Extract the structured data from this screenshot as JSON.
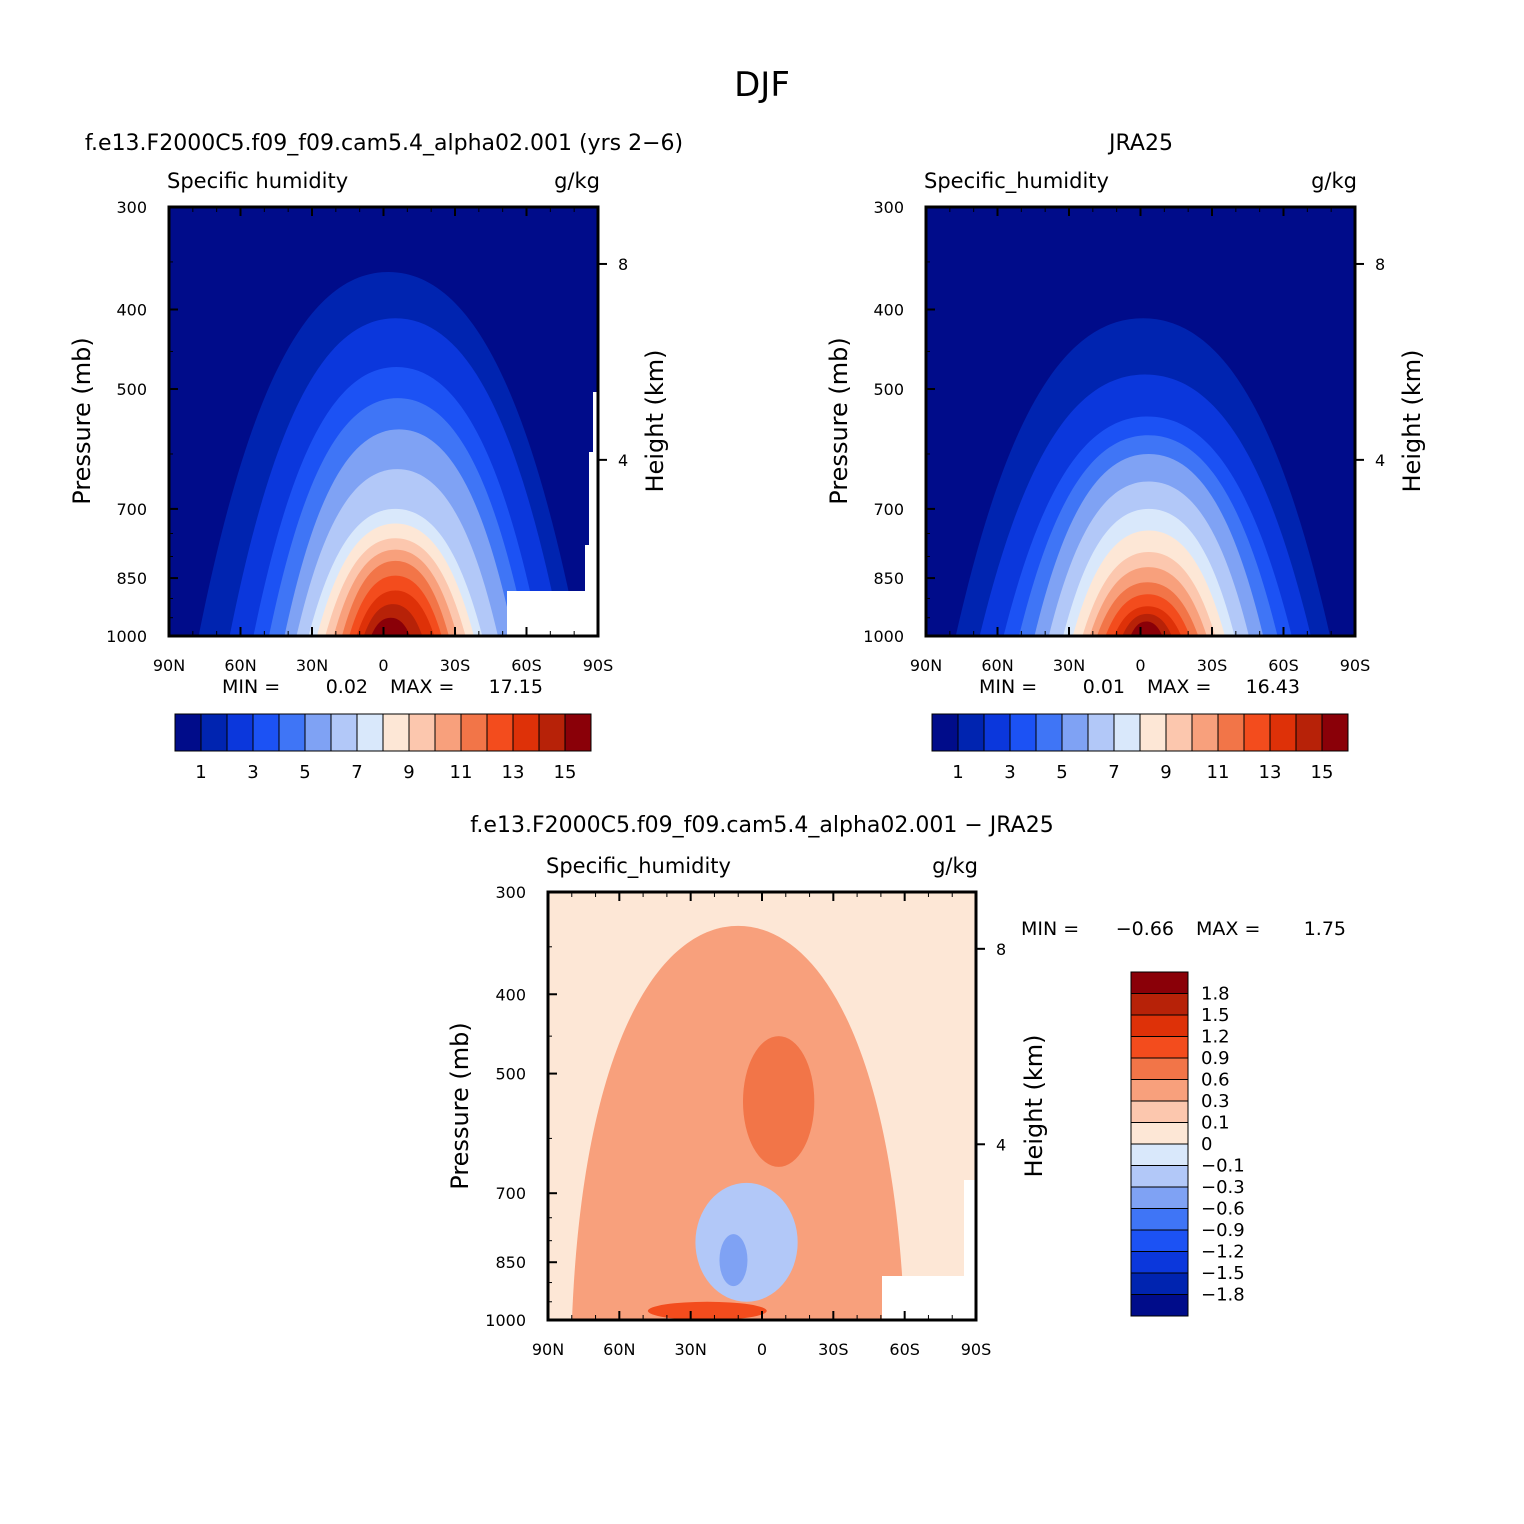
{
  "title": "DJF",
  "colors": {
    "seq": [
      "#000c8a",
      "#0024b0",
      "#0b37dc",
      "#1c52f4",
      "#3f75f6",
      "#7fa2f4",
      "#b2c8f8",
      "#d9e8fb",
      "#fde7d6",
      "#fcc7ae",
      "#f8a07c",
      "#f27548",
      "#f34c1d",
      "#de3108",
      "#b72208",
      "#8a0008"
    ],
    "diff": [
      "#000c8a",
      "#0024b0",
      "#0b37dc",
      "#1c52f4",
      "#3f75f6",
      "#7fa2f4",
      "#b2c8f8",
      "#d9e8fb",
      "#fde7d6",
      "#fcc7ae",
      "#f8a07c",
      "#f27548",
      "#f34c1d",
      "#de3108",
      "#b72208",
      "#8a0008"
    ]
  },
  "panel_model": {
    "case_title": "f.e13.F2000C5.f09_f09.cam5.4_alpha02.001 (yrs 2-6)",
    "left_label": "Specific humidity",
    "units": "g/kg",
    "ylabel": "Pressure (mb)",
    "right_ylabel": "Height (km)",
    "min_label": "MIN =",
    "min_value": "0.02",
    "max_label": "MAX =",
    "max_value": "17.15"
  },
  "panel_obs": {
    "case_title": "JRA25",
    "left_label": "Specific_humidity",
    "units": "g/kg",
    "ylabel": "Pressure (mb)",
    "right_ylabel": "Height (km)",
    "min_label": "MIN =",
    "min_value": "0.01",
    "max_label": "MAX =",
    "max_value": "16.43"
  },
  "panel_diff": {
    "case_title": "f.e13.F2000C5.f09_f09.cam5.4_alpha02.001 - JRA25",
    "left_label": "Specific_humidity",
    "units": "g/kg",
    "ylabel": "Pressure (mb)",
    "right_ylabel": "Height (km)",
    "min_label": "MIN =",
    "min_value": "-0.66",
    "max_label": "MAX =",
    "max_value": "1.75"
  },
  "axes": {
    "pressure_ticks": [
      "300",
      "400",
      "500",
      "700",
      "850",
      "1000"
    ],
    "lat_ticks": [
      "90N",
      "60N",
      "30N",
      "0",
      "30S",
      "60S",
      "90S"
    ],
    "height_ticks": [
      "8",
      "4"
    ]
  },
  "colorbar_seq": {
    "labels": [
      "1",
      "3",
      "5",
      "7",
      "9",
      "11",
      "13",
      "15"
    ]
  },
  "colorbar_diff": {
    "labels": [
      "1.8",
      "1.5",
      "1.2",
      "0.9",
      "0.6",
      "0.3",
      "0.1",
      "0",
      "-0.1",
      "-0.3",
      "-0.6",
      "-0.9",
      "-1.2",
      "-1.5",
      "-1.8"
    ]
  },
  "chart_data": [
    {
      "type": "heatmap",
      "title": "f.e13.F2000C5.f09_f09.cam5.4_alpha02.001 (yrs 2-6)",
      "xlabel": "",
      "ylabel": "Pressure (mb)",
      "x_ticks": [
        "90N",
        "60N",
        "30N",
        "0",
        "30S",
        "60S",
        "90S"
      ],
      "y_ticks": [
        300,
        400,
        500,
        700,
        850,
        1000
      ],
      "xlim": [
        90,
        -90
      ],
      "ylim": [
        1000,
        300
      ],
      "y_scale": "log",
      "levels": [
        1,
        2,
        3,
        4,
        5,
        6,
        7,
        8,
        9,
        10,
        11,
        12,
        13,
        14,
        15
      ],
      "min": 0.02,
      "max": 17.15,
      "center_lat": 0,
      "surface_max": 17.15,
      "shape": [
        {
          "level": 1,
          "top_p": 360,
          "lat_range": [
            -82,
            78
          ]
        },
        {
          "level": 2,
          "top_p": 410,
          "lat_range": [
            -75,
            65
          ]
        },
        {
          "level": 3,
          "top_p": 470,
          "lat_range": [
            -66,
            55
          ]
        },
        {
          "level": 5,
          "top_p": 560,
          "lat_range": [
            -55,
            42
          ]
        },
        {
          "level": 7,
          "top_p": 700,
          "lat_range": [
            -42,
            32
          ]
        },
        {
          "level": 9,
          "top_p": 760,
          "lat_range": [
            -35,
            25
          ]
        },
        {
          "level": 11,
          "top_p": 810,
          "lat_range": [
            -28,
            18
          ]
        },
        {
          "level": 13,
          "top_p": 880,
          "lat_range": [
            -22,
            12
          ]
        },
        {
          "level": 15,
          "top_p": 950,
          "lat_range": [
            -12,
            6
          ]
        }
      ]
    },
    {
      "type": "heatmap",
      "title": "JRA25",
      "xlabel": "",
      "ylabel": "Pressure (mb)",
      "x_ticks": [
        "90N",
        "60N",
        "30N",
        "0",
        "30S",
        "60S",
        "90S"
      ],
      "y_ticks": [
        300,
        400,
        500,
        700,
        850,
        1000
      ],
      "xlim": [
        90,
        -90
      ],
      "ylim": [
        1000,
        300
      ],
      "y_scale": "log",
      "levels": [
        1,
        2,
        3,
        4,
        5,
        6,
        7,
        8,
        9,
        10,
        11,
        12,
        13,
        14,
        15
      ],
      "min": 0.01,
      "max": 16.43,
      "shape": [
        {
          "level": 1,
          "top_p": 410,
          "lat_range": [
            -80,
            78
          ]
        },
        {
          "level": 2,
          "top_p": 480,
          "lat_range": [
            -72,
            68
          ]
        },
        {
          "level": 3,
          "top_p": 540,
          "lat_range": [
            -64,
            58
          ]
        },
        {
          "level": 5,
          "top_p": 600,
          "lat_range": [
            -52,
            45
          ]
        },
        {
          "level": 7,
          "top_p": 700,
          "lat_range": [
            -40,
            33
          ]
        },
        {
          "level": 9,
          "top_p": 790,
          "lat_range": [
            -32,
            25
          ]
        },
        {
          "level": 11,
          "top_p": 860,
          "lat_range": [
            -25,
            19
          ]
        },
        {
          "level": 13,
          "top_p": 920,
          "lat_range": [
            -18,
            12
          ]
        },
        {
          "level": 15,
          "top_p": 960,
          "lat_range": [
            -10,
            5
          ]
        }
      ]
    },
    {
      "type": "heatmap",
      "title": "f.e13.F2000C5.f09_f09.cam5.4_alpha02.001 - JRA25",
      "xlabel": "",
      "ylabel": "Pressure (mb)",
      "x_ticks": [
        "90N",
        "60N",
        "30N",
        "0",
        "30S",
        "60S",
        "90S"
      ],
      "y_ticks": [
        300,
        400,
        500,
        700,
        850,
        1000
      ],
      "xlim": [
        90,
        -90
      ],
      "ylim": [
        1000,
        300
      ],
      "y_scale": "log",
      "levels": [
        -1.8,
        -1.5,
        -1.2,
        -0.9,
        -0.6,
        -0.3,
        -0.1,
        0,
        0.1,
        0.3,
        0.6,
        0.9,
        1.2,
        1.5,
        1.8
      ],
      "min": -0.66,
      "max": 1.75,
      "features": [
        {
          "value": 0.3,
          "desc": "broad positive dome",
          "lat_range": [
            -60,
            80
          ],
          "p_range": [
            1000,
            330
          ]
        },
        {
          "value": 0.6,
          "desc": "upper tropical maximum",
          "lat_range": [
            -22,
            8
          ],
          "p_range": [
            650,
            450
          ]
        },
        {
          "value": -0.3,
          "desc": "lower tropospheric negative",
          "lat_range": [
            -15,
            28
          ],
          "p_range": [
            950,
            680
          ]
        },
        {
          "value": 0.9,
          "desc": "near-surface positive",
          "lat_range": [
            -2,
            48
          ],
          "p_range": [
            1000,
            950
          ]
        }
      ]
    }
  ]
}
